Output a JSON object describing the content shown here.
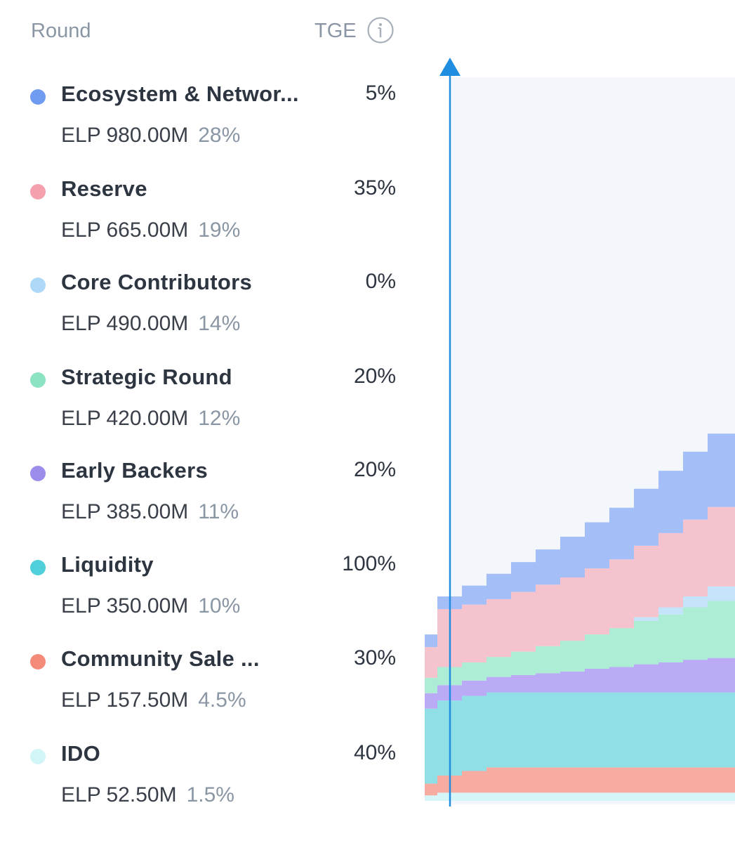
{
  "header": {
    "round_label": "Round",
    "tge_label": "TGE",
    "info_icon": "info-icon"
  },
  "rounds": [
    {
      "name": "Ecosystem & Networ...",
      "tge": "5%",
      "amount": "ELP 980.00M",
      "share": "28%",
      "color": "#6f9bf0"
    },
    {
      "name": "Reserve",
      "tge": "35%",
      "amount": "ELP 665.00M",
      "share": "19%",
      "color": "#f4a0ad"
    },
    {
      "name": "Core Contributors",
      "tge": "0%",
      "amount": "ELP 490.00M",
      "share": "14%",
      "color": "#aed8f7"
    },
    {
      "name": "Strategic Round",
      "tge": "20%",
      "amount": "ELP 420.00M",
      "share": "12%",
      "color": "#8be3c1"
    },
    {
      "name": "Early Backers",
      "tge": "20%",
      "amount": "ELP 385.00M",
      "share": "11%",
      "color": "#9c8cec"
    },
    {
      "name": "Liquidity",
      "tge": "100%",
      "amount": "ELP 350.00M",
      "share": "10%",
      "color": "#4fcfd9"
    },
    {
      "name": "Community Sale ...",
      "tge": "30%",
      "amount": "ELP 157.50M",
      "share": "4.5%",
      "color": "#f48b78"
    },
    {
      "name": "IDO",
      "tge": "40%",
      "amount": "ELP 52.50M",
      "share": "1.5%",
      "color": "#d2f5f7"
    }
  ],
  "chart_data": {
    "type": "area",
    "stacked": true,
    "step": true,
    "unit": "% of total supply unlocked",
    "marker": "TGE line with up-arrow",
    "background_color": "#f3f7fb",
    "marker_color": "#1f8ee0",
    "x": [
      0,
      1,
      2,
      3,
      4,
      5,
      6,
      7,
      8,
      9,
      10,
      11,
      12
    ],
    "series": [
      {
        "name": "IDO",
        "color": "#d6f5f8",
        "values": [
          0.6,
          0.9,
          0.9,
          0.9,
          0.9,
          0.9,
          0.9,
          0.9,
          0.9,
          0.9,
          0.9,
          0.9,
          0.9
        ]
      },
      {
        "name": "Community Sale",
        "color": "#f6aca1",
        "values": [
          1.3,
          1.9,
          2.4,
          2.8,
          2.8,
          2.8,
          2.8,
          2.8,
          2.8,
          2.8,
          2.8,
          2.8,
          2.8
        ]
      },
      {
        "name": "Liquidity",
        "color": "#90dfe6",
        "values": [
          8.3,
          8.3,
          8.3,
          8.3,
          8.3,
          8.3,
          8.3,
          8.3,
          8.3,
          8.3,
          8.3,
          8.3,
          8.3
        ]
      },
      {
        "name": "Early Backers",
        "color": "#bbaaf5",
        "values": [
          1.7,
          1.7,
          1.7,
          1.7,
          1.9,
          2.1,
          2.3,
          2.6,
          2.8,
          3.1,
          3.3,
          3.6,
          3.8
        ]
      },
      {
        "name": "Strategic Round",
        "color": "#aeedd5",
        "values": [
          1.7,
          2.0,
          2.0,
          2.2,
          2.6,
          3.0,
          3.4,
          3.8,
          4.3,
          4.8,
          5.3,
          5.8,
          6.3
        ]
      },
      {
        "name": "Core Contributors",
        "color": "#c5e4fa",
        "values": [
          0,
          0,
          0,
          0,
          0,
          0,
          0,
          0,
          0,
          0.4,
          0.8,
          1.2,
          1.6
        ]
      },
      {
        "name": "Reserve",
        "color": "#f4c3cd",
        "values": [
          3.4,
          6.4,
          6.4,
          6.4,
          6.6,
          6.8,
          7.0,
          7.3,
          7.6,
          7.9,
          8.2,
          8.5,
          8.8
        ]
      },
      {
        "name": "Ecosystem & Network",
        "color": "#a4bff7",
        "values": [
          1.4,
          1.4,
          2.1,
          2.8,
          3.3,
          3.9,
          4.5,
          5.1,
          5.7,
          6.3,
          6.9,
          7.5,
          8.1
        ]
      }
    ],
    "ylim": [
      0,
      80
    ]
  }
}
